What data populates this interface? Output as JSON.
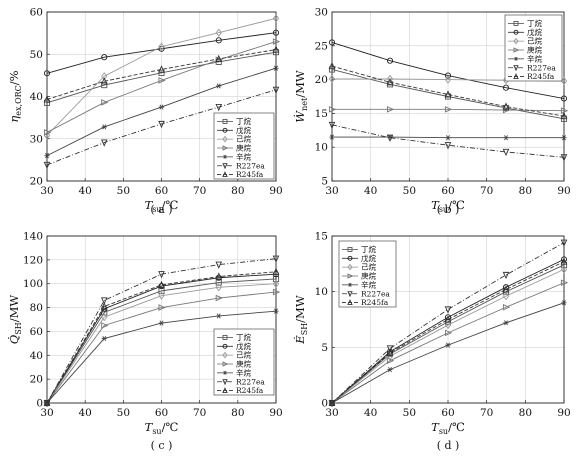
{
  "chart_data": [
    {
      "type": "line",
      "panel": "(a)",
      "caption": "( a )",
      "ylabel": "η_ex,ORC/%",
      "xlabel": "T_su/℃",
      "xlim": [
        30,
        90
      ],
      "ylim": [
        20,
        60
      ],
      "xticks": [
        30,
        40,
        50,
        60,
        70,
        80,
        90
      ],
      "yticks": [
        20,
        30,
        40,
        50,
        60
      ],
      "grid": true,
      "legend_position": "lower-right",
      "x": [
        30,
        45,
        60,
        75,
        90
      ],
      "series": [
        {
          "name": "丁烷",
          "values": [
            38.5,
            42.7,
            45.6,
            48.2,
            50.5
          ],
          "color": "#555555",
          "marker": "square",
          "dash": ""
        },
        {
          "name": "戊烷",
          "values": [
            45.5,
            49.3,
            51.3,
            53.3,
            55.1
          ],
          "color": "#222222",
          "marker": "circle",
          "dash": ""
        },
        {
          "name": "己烷",
          "values": [
            30.8,
            44.8,
            51.8,
            55.1,
            58.5
          ],
          "color": "#9a9a9a",
          "marker": "diamond",
          "dash": ""
        },
        {
          "name": "庚烷",
          "values": [
            31.5,
            38.6,
            43.8,
            48.7,
            53.0
          ],
          "color": "#777777",
          "marker": "triangle-right",
          "dash": ""
        },
        {
          "name": "辛烷",
          "values": [
            26.0,
            32.8,
            37.5,
            42.5,
            46.7
          ],
          "color": "#444444",
          "marker": "star",
          "dash": ""
        },
        {
          "name": "R227ea",
          "values": [
            23.8,
            29.1,
            33.5,
            37.5,
            41.6
          ],
          "color": "#333333",
          "marker": "triangle-down",
          "dash": "5,2,1,2"
        },
        {
          "name": "R245fa",
          "values": [
            39.3,
            43.6,
            46.4,
            48.9,
            51.1
          ],
          "color": "#333333",
          "marker": "triangle-up",
          "dash": "4,2"
        }
      ]
    },
    {
      "type": "line",
      "panel": "(b)",
      "caption": "( b )",
      "ylabel": "Ẇ_net/MW",
      "xlabel": "T_su/℃",
      "xlim": [
        30,
        90
      ],
      "ylim": [
        5,
        30
      ],
      "xticks": [
        30,
        40,
        50,
        60,
        70,
        80,
        90
      ],
      "yticks": [
        5,
        10,
        15,
        20,
        25,
        30
      ],
      "grid": true,
      "legend_position": "top-right",
      "x": [
        30,
        45,
        60,
        75,
        90
      ],
      "series": [
        {
          "name": "丁烷",
          "values": [
            21.5,
            19.3,
            17.5,
            15.8,
            14.2
          ],
          "color": "#555555",
          "marker": "square",
          "dash": ""
        },
        {
          "name": "戊烷",
          "values": [
            25.5,
            22.8,
            20.6,
            18.8,
            17.2
          ],
          "color": "#222222",
          "marker": "circle",
          "dash": ""
        },
        {
          "name": "己烷",
          "values": [
            20.1,
            20.1,
            20.0,
            19.9,
            19.8
          ],
          "color": "#9a9a9a",
          "marker": "diamond",
          "dash": ""
        },
        {
          "name": "庚烷",
          "values": [
            15.6,
            15.6,
            15.6,
            15.5,
            15.4
          ],
          "color": "#777777",
          "marker": "triangle-right",
          "dash": ""
        },
        {
          "name": "辛烷",
          "values": [
            11.5,
            11.5,
            11.4,
            11.4,
            11.4
          ],
          "color": "#444444",
          "marker": "star",
          "dash": ""
        },
        {
          "name": "R227ea",
          "values": [
            13.3,
            11.4,
            10.3,
            9.3,
            8.5
          ],
          "color": "#333333",
          "marker": "triangle-down",
          "dash": "5,2,1,2"
        },
        {
          "name": "R245fa",
          "values": [
            22.0,
            19.6,
            17.8,
            16.0,
            14.6
          ],
          "color": "#333333",
          "marker": "triangle-up",
          "dash": "4,2"
        }
      ]
    },
    {
      "type": "line",
      "panel": "(c)",
      "caption": "( c )",
      "ylabel": "Q̇_SH/MW",
      "xlabel": "T_su/℃",
      "xlim": [
        30,
        90
      ],
      "ylim": [
        0,
        140
      ],
      "xticks": [
        30,
        40,
        50,
        60,
        70,
        80,
        90
      ],
      "yticks": [
        0,
        20,
        40,
        60,
        80,
        100,
        120,
        140
      ],
      "grid": true,
      "legend_position": "lower-right",
      "x": [
        30,
        45,
        60,
        75,
        90
      ],
      "series": [
        {
          "name": "丁烷",
          "values": [
            0,
            76,
            94,
            101,
            104
          ],
          "color": "#555555",
          "marker": "square",
          "dash": ""
        },
        {
          "name": "戊烷",
          "values": [
            0,
            79,
            98,
            105,
            108
          ],
          "color": "#222222",
          "marker": "circle",
          "dash": ""
        },
        {
          "name": "己烷",
          "values": [
            0,
            72,
            90,
            97,
            100
          ],
          "color": "#9a9a9a",
          "marker": "diamond",
          "dash": ""
        },
        {
          "name": "庚烷",
          "values": [
            0,
            65,
            80,
            88,
            93
          ],
          "color": "#777777",
          "marker": "triangle-right",
          "dash": ""
        },
        {
          "name": "辛烷",
          "values": [
            0,
            54,
            67,
            73,
            77
          ],
          "color": "#444444",
          "marker": "star",
          "dash": ""
        },
        {
          "name": "R227ea",
          "values": [
            0,
            86,
            108,
            116,
            121
          ],
          "color": "#333333",
          "marker": "triangle-down",
          "dash": "5,2,1,2"
        },
        {
          "name": "R245fa",
          "values": [
            0,
            81,
            99,
            106,
            110
          ],
          "color": "#333333",
          "marker": "triangle-up",
          "dash": "4,2"
        }
      ]
    },
    {
      "type": "line",
      "panel": "(d)",
      "caption": "( d )",
      "ylabel": "Ė_SH/MW",
      "xlabel": "T_su/℃",
      "xlim": [
        30,
        90
      ],
      "ylim": [
        0,
        15
      ],
      "xticks": [
        30,
        40,
        50,
        60,
        70,
        80,
        90
      ],
      "yticks": [
        0,
        5,
        10,
        15
      ],
      "grid": true,
      "legend_position": "top-left",
      "x": [
        30,
        45,
        60,
        75,
        90
      ],
      "series": [
        {
          "name": "丁烷",
          "values": [
            0,
            4.4,
            7.3,
            10.0,
            12.4
          ],
          "color": "#555555",
          "marker": "square",
          "dash": ""
        },
        {
          "name": "戊烷",
          "values": [
            0,
            4.6,
            7.7,
            10.4,
            12.9
          ],
          "color": "#222222",
          "marker": "circle",
          "dash": ""
        },
        {
          "name": "己烷",
          "values": [
            0,
            4.2,
            7.0,
            9.6,
            12.0
          ],
          "color": "#9a9a9a",
          "marker": "diamond",
          "dash": ""
        },
        {
          "name": "庚烷",
          "values": [
            0,
            3.8,
            6.3,
            8.6,
            10.8
          ],
          "color": "#777777",
          "marker": "triangle-right",
          "dash": ""
        },
        {
          "name": "辛烷",
          "values": [
            0,
            3.0,
            5.2,
            7.2,
            9.0
          ],
          "color": "#444444",
          "marker": "star",
          "dash": ""
        },
        {
          "name": "R227ea",
          "values": [
            0,
            4.9,
            8.4,
            11.5,
            14.4
          ],
          "color": "#333333",
          "marker": "triangle-down",
          "dash": "5,2,1,2"
        },
        {
          "name": "R245fa",
          "values": [
            0,
            4.5,
            7.5,
            10.2,
            12.7
          ],
          "color": "#333333",
          "marker": "triangle-up",
          "dash": "4,2"
        }
      ]
    }
  ]
}
